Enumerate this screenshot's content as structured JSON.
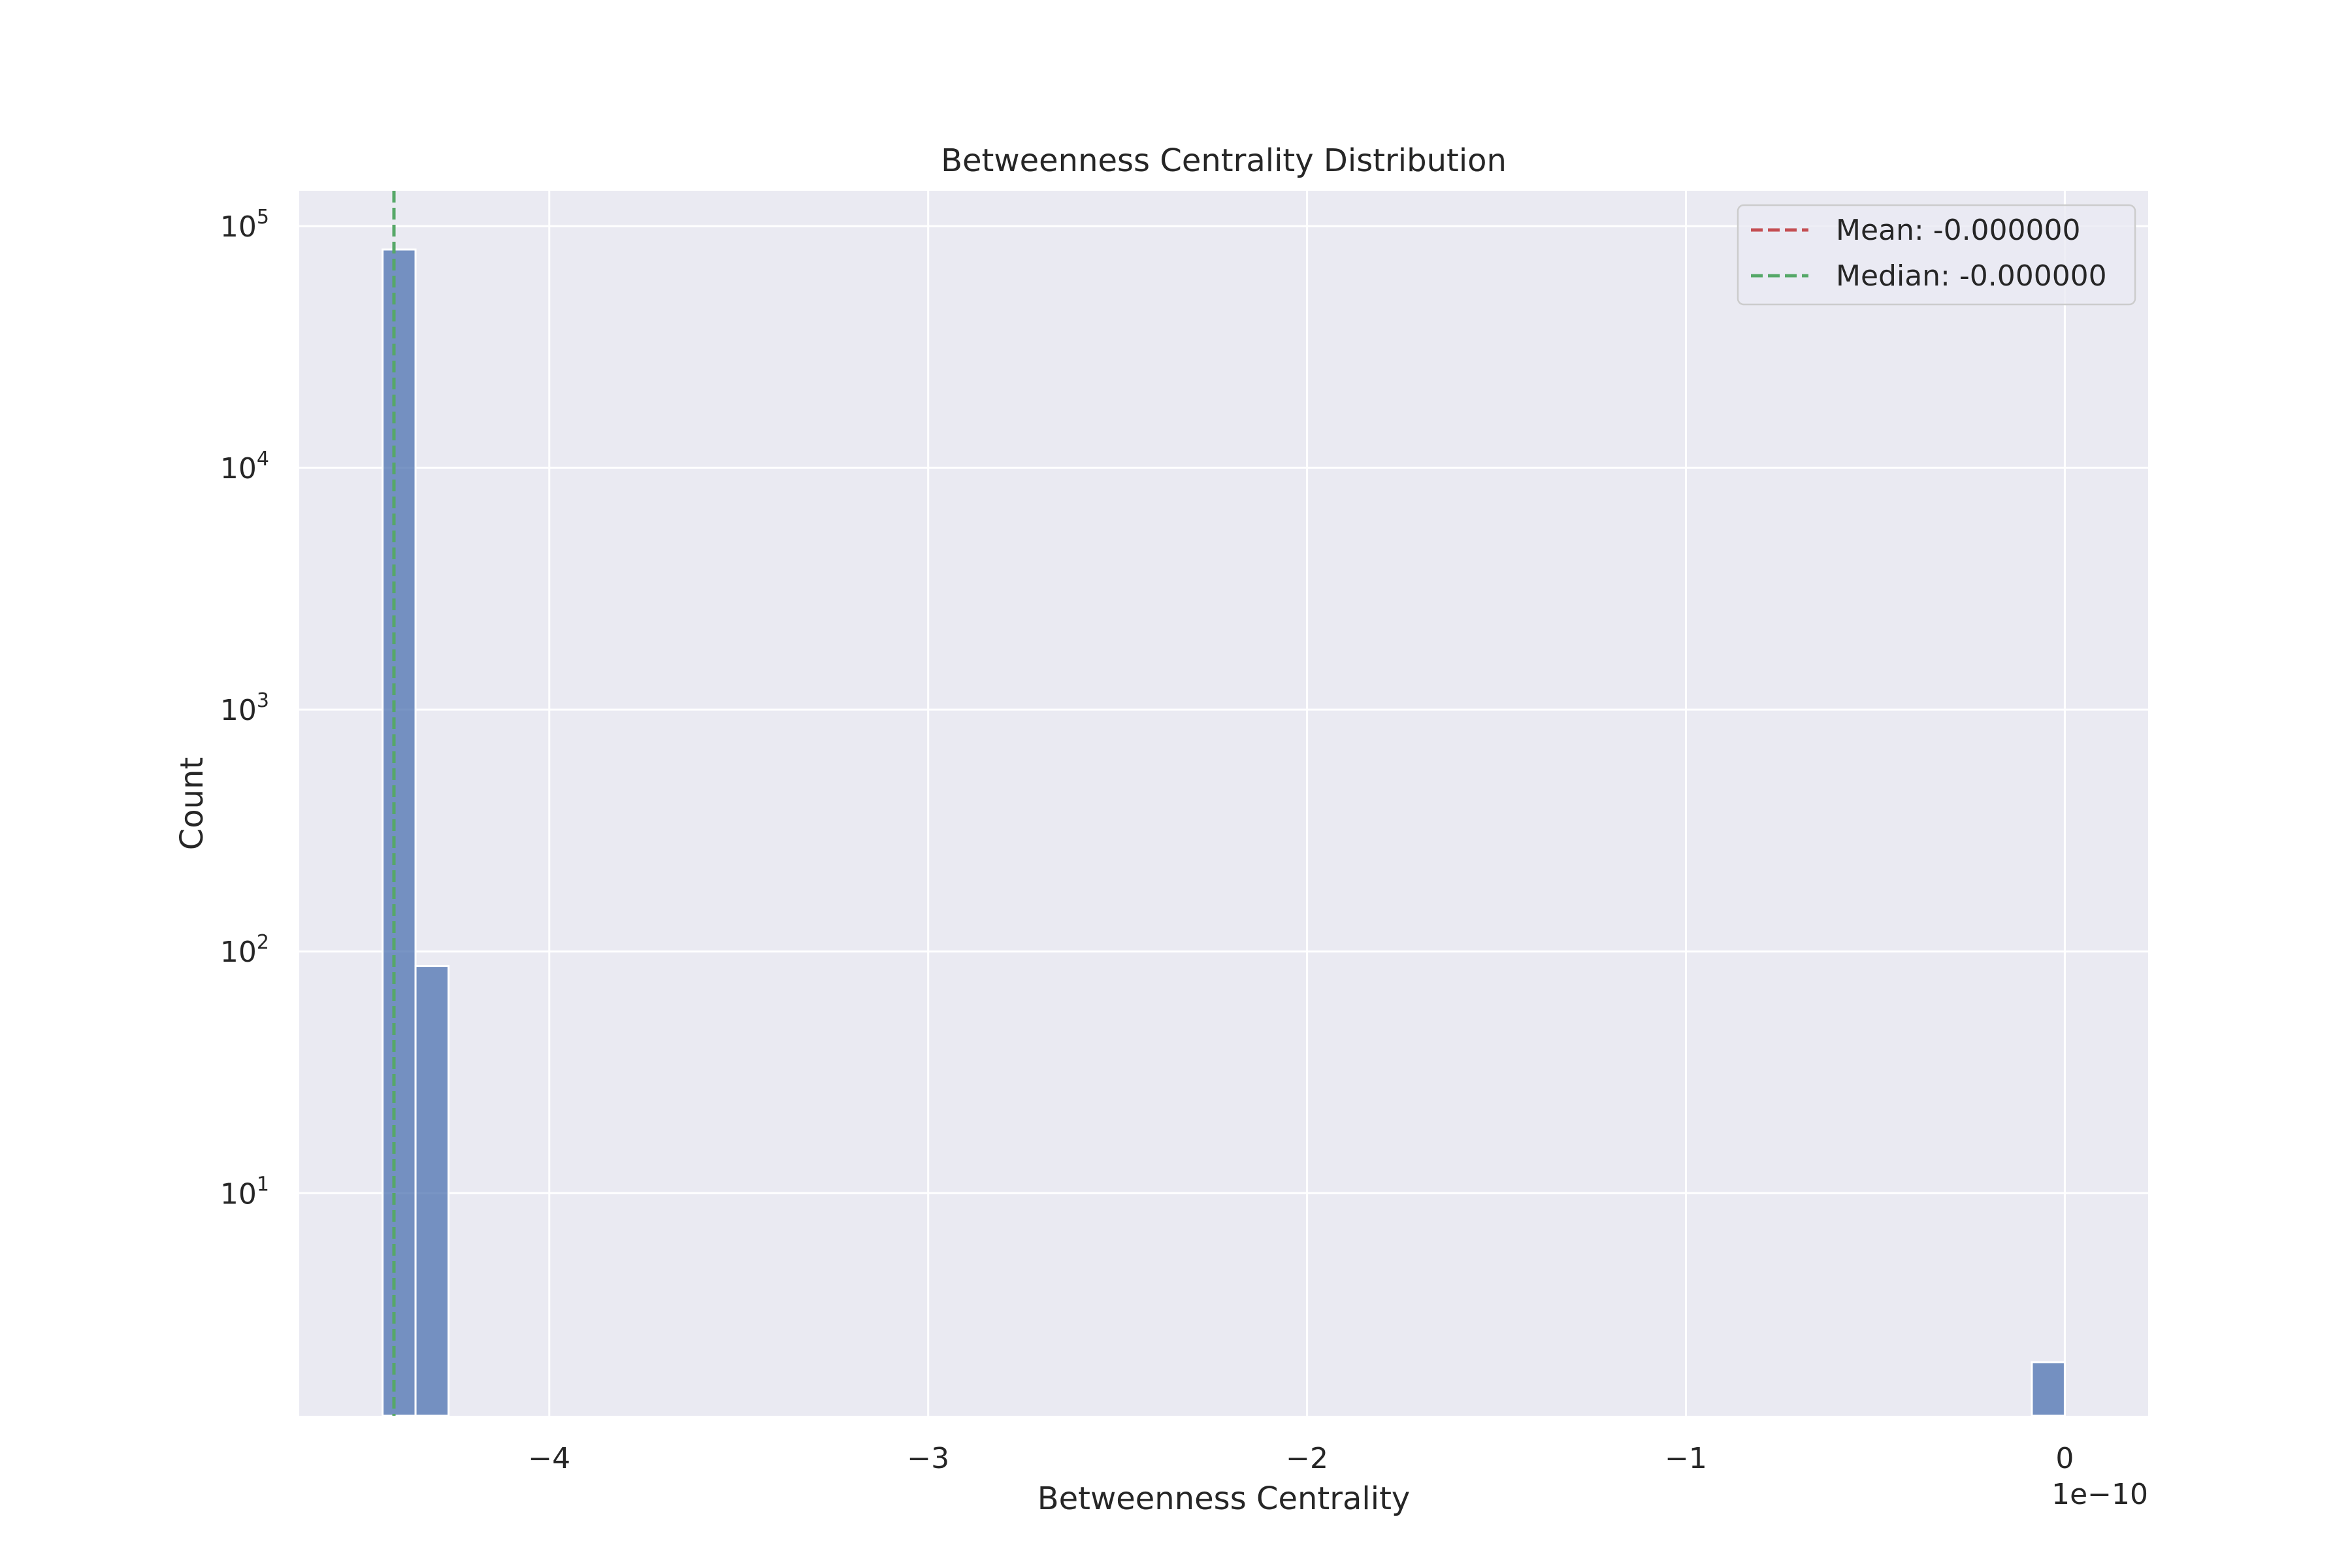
{
  "chart_data": {
    "type": "bar",
    "title": "Betweenness Centrality Distribution",
    "xlabel": "Betweenness Centrality",
    "ylabel": "Count",
    "x_offset_label": "1e−10",
    "x_scale_factor": 1e-10,
    "xlim": [
      -4.66,
      0.22
    ],
    "ylim": [
      1.2,
      140000
    ],
    "y_scale": "log",
    "grid": true,
    "x_ticks": [
      {
        "value": -4,
        "label": "−4"
      },
      {
        "value": -3,
        "label": "−3"
      },
      {
        "value": -2,
        "label": "−2"
      },
      {
        "value": -1,
        "label": "−1"
      },
      {
        "value": 0,
        "label": "0"
      }
    ],
    "y_ticks": [
      {
        "value": 10,
        "base": "10",
        "exp": "1"
      },
      {
        "value": 100,
        "base": "10",
        "exp": "2"
      },
      {
        "value": 1000,
        "base": "10",
        "exp": "3"
      },
      {
        "value": 10000,
        "base": "10",
        "exp": "4"
      },
      {
        "value": 100000,
        "base": "10",
        "exp": "5"
      }
    ],
    "bins": [
      {
        "x0": -4.44,
        "x1": -4.353,
        "count": 80000
      },
      {
        "x0": -4.353,
        "x1": -4.266,
        "count": 87
      },
      {
        "x0": -0.087,
        "x1": 0.0,
        "count": 2
      }
    ],
    "vlines": [
      {
        "name": "mean",
        "label": "Mean: -0.000000",
        "x": -4.41,
        "color": "#c44e52"
      },
      {
        "name": "median",
        "label": "Median: -0.000000",
        "x": -4.41,
        "color": "#55a868"
      }
    ],
    "legend_position": "top-right",
    "colors": {
      "bar": "#4c72b0",
      "axes_bg": "#eaeaf2",
      "grid": "#ffffff"
    }
  }
}
